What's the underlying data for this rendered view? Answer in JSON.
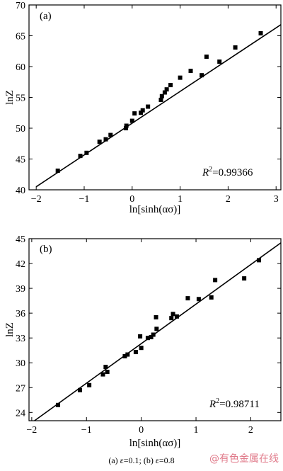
{
  "chart_data": [
    {
      "type": "scatter",
      "panel_label": "(a)",
      "xlabel_text": "ln[sinh(ασ)]",
      "ylabel_text": "lnZ",
      "r2_label": "R",
      "r2_sup": "2",
      "r2_value": "=0.99366",
      "xlim": [
        -2.15,
        3.1
      ],
      "ylim": [
        40,
        70
      ],
      "x_ticks": [
        -2,
        -1,
        0,
        1,
        2,
        3
      ],
      "y_ticks": [
        40,
        45,
        50,
        55,
        60,
        65,
        70
      ],
      "grid": false,
      "points": [
        {
          "x": -1.55,
          "y": 43.1
        },
        {
          "x": -1.08,
          "y": 45.5
        },
        {
          "x": -0.95,
          "y": 46.0
        },
        {
          "x": -0.68,
          "y": 47.8
        },
        {
          "x": -0.55,
          "y": 48.2
        },
        {
          "x": -0.45,
          "y": 48.9
        },
        {
          "x": -0.13,
          "y": 50.0
        },
        {
          "x": -0.12,
          "y": 50.4
        },
        {
          "x": 0.0,
          "y": 51.2
        },
        {
          "x": 0.05,
          "y": 52.4
        },
        {
          "x": 0.18,
          "y": 52.5
        },
        {
          "x": 0.22,
          "y": 52.9
        },
        {
          "x": 0.33,
          "y": 53.5
        },
        {
          "x": 0.6,
          "y": 54.6
        },
        {
          "x": 0.62,
          "y": 55.2
        },
        {
          "x": 0.68,
          "y": 55.8
        },
        {
          "x": 0.72,
          "y": 56.3
        },
        {
          "x": 0.8,
          "y": 57.0
        },
        {
          "x": 1.0,
          "y": 58.2
        },
        {
          "x": 1.22,
          "y": 59.3
        },
        {
          "x": 1.45,
          "y": 58.6
        },
        {
          "x": 1.55,
          "y": 61.6
        },
        {
          "x": 1.82,
          "y": 60.8
        },
        {
          "x": 2.15,
          "y": 63.1
        },
        {
          "x": 2.68,
          "y": 65.4
        }
      ],
      "fit_line": {
        "x": [
          -2.0,
          3.1
        ],
        "y": [
          40.5,
          66.8
        ]
      }
    },
    {
      "type": "scatter",
      "panel_label": "(b)",
      "xlabel_text": "ln[sinh(ασ)]",
      "ylabel_text": "lnZ",
      "r2_label": "R",
      "r2_sup": "2",
      "r2_value": "=0.98711",
      "xlim": [
        -2.05,
        2.55
      ],
      "ylim": [
        23,
        45
      ],
      "x_ticks": [
        -2,
        -1,
        0,
        1,
        2
      ],
      "y_ticks": [
        24,
        27,
        30,
        33,
        36,
        39,
        42,
        45
      ],
      "grid": false,
      "points": [
        {
          "x": -1.52,
          "y": 24.9
        },
        {
          "x": -1.12,
          "y": 26.7
        },
        {
          "x": -0.95,
          "y": 27.3
        },
        {
          "x": -0.7,
          "y": 28.6
        },
        {
          "x": -0.65,
          "y": 29.5
        },
        {
          "x": -0.62,
          "y": 28.9
        },
        {
          "x": -0.3,
          "y": 30.8
        },
        {
          "x": -0.25,
          "y": 31.0
        },
        {
          "x": -0.1,
          "y": 31.3
        },
        {
          "x": 0.0,
          "y": 31.8
        },
        {
          "x": -0.02,
          "y": 33.2
        },
        {
          "x": 0.12,
          "y": 33.0
        },
        {
          "x": 0.18,
          "y": 33.1
        },
        {
          "x": 0.22,
          "y": 33.4
        },
        {
          "x": 0.28,
          "y": 34.1
        },
        {
          "x": 0.27,
          "y": 35.5
        },
        {
          "x": 0.55,
          "y": 35.4
        },
        {
          "x": 0.58,
          "y": 35.9
        },
        {
          "x": 0.65,
          "y": 35.6
        },
        {
          "x": 0.85,
          "y": 37.8
        },
        {
          "x": 1.05,
          "y": 37.7
        },
        {
          "x": 1.28,
          "y": 37.9
        },
        {
          "x": 1.35,
          "y": 40.0
        },
        {
          "x": 1.88,
          "y": 40.2
        },
        {
          "x": 2.15,
          "y": 42.4
        }
      ],
      "fit_line": {
        "x": [
          -1.95,
          2.55
        ],
        "y": [
          23.0,
          44.5
        ]
      }
    }
  ],
  "caption": "(a) ε=0.1; (b) ε=0.8",
  "watermark": "@有色金属在线"
}
